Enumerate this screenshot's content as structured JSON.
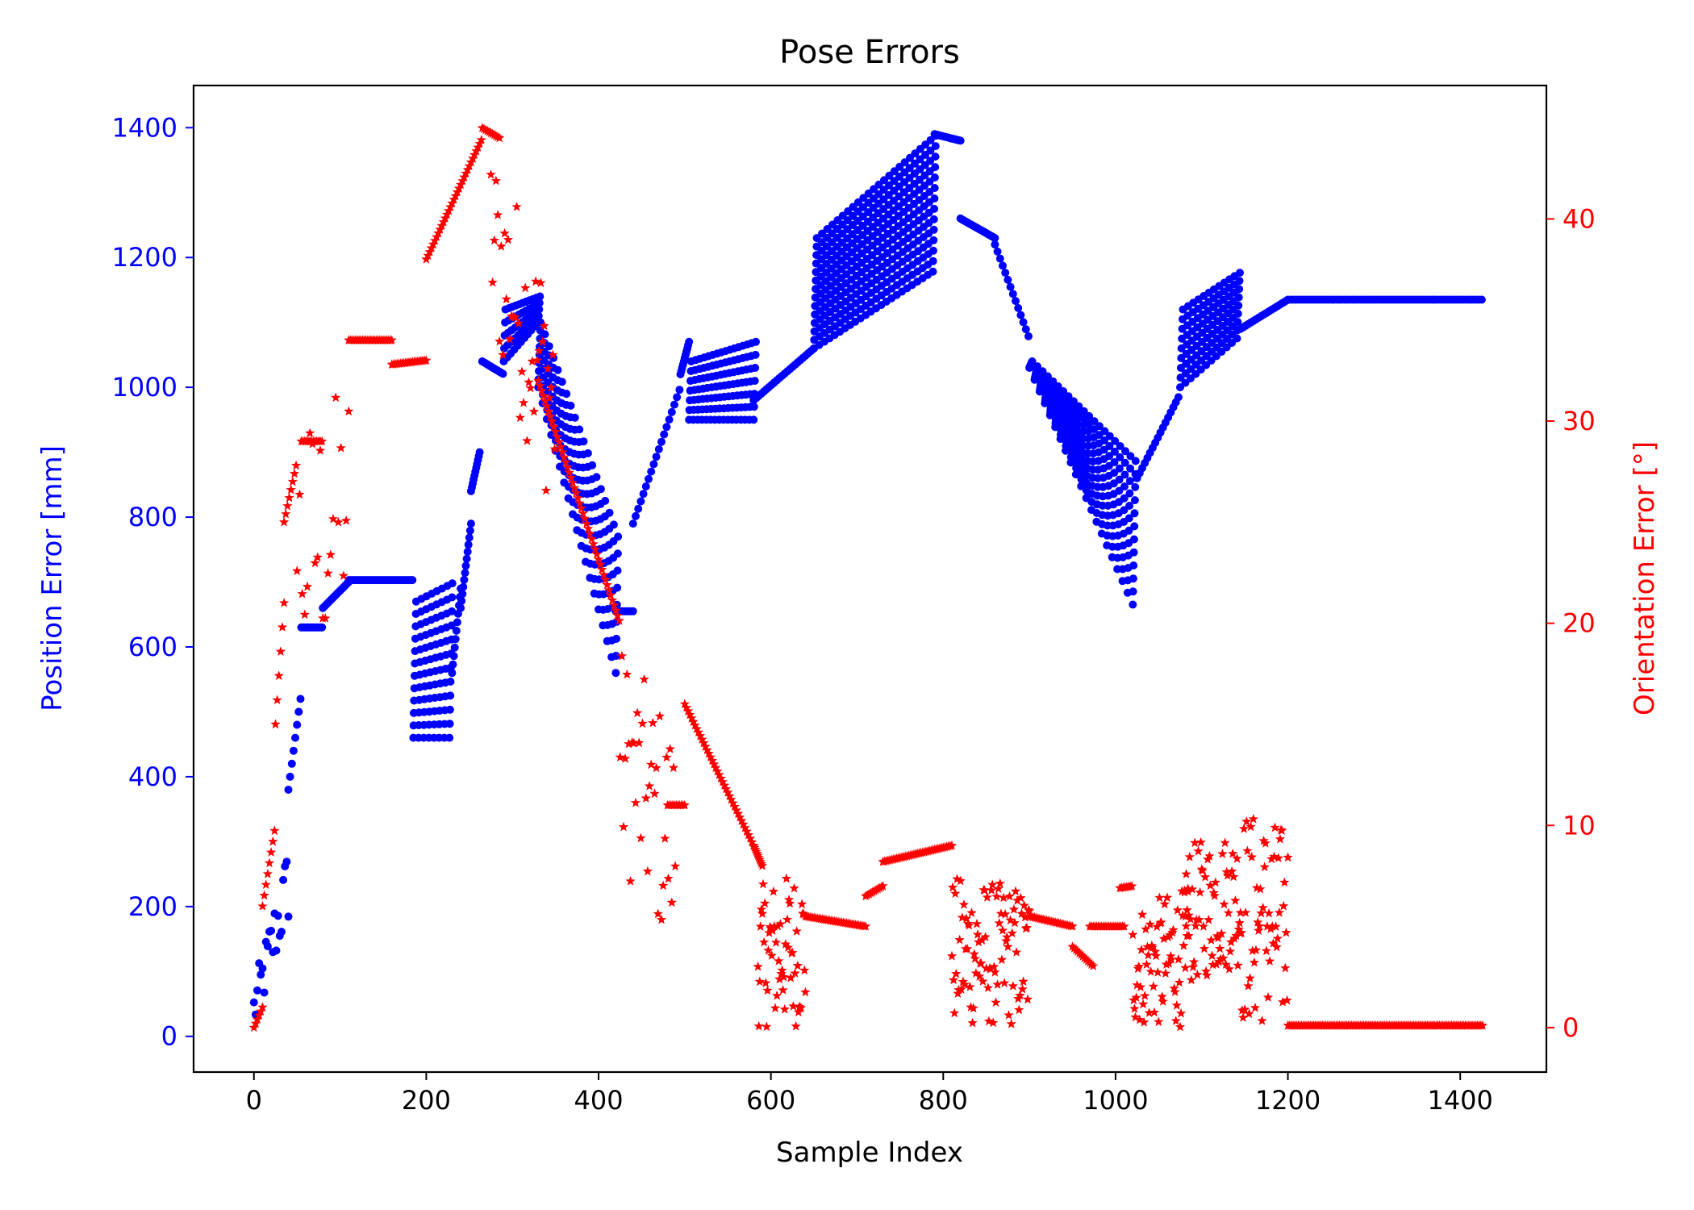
{
  "chart_data": {
    "type": "scatter",
    "title": "Pose Errors",
    "xlabel": "Sample Index",
    "ylabel_left": "Position Error [mm]",
    "ylabel_right": "Orientation Error [°]",
    "xlim": [
      -70,
      1500
    ],
    "ylim_left": [
      -55,
      1465
    ],
    "ylim_right": [
      -2.2,
      46.6
    ],
    "x_ticks": [
      0,
      200,
      400,
      600,
      800,
      1000,
      1200,
      1400
    ],
    "y_left_ticks": [
      0,
      200,
      400,
      600,
      800,
      1000,
      1200,
      1400
    ],
    "y_right_ticks": [
      0,
      10,
      20,
      30,
      40
    ],
    "grid": false,
    "left_color": "#0000ff",
    "right_color": "#ff0000",
    "series": [
      {
        "axis": "left",
        "marker": "circle",
        "color": "#0000ff",
        "segments": [
          {
            "type": "scatter",
            "x0": 0,
            "x1": 40,
            "step": 2,
            "lo": [
              0,
              170
            ],
            "hi": [
              80,
              300
            ]
          },
          {
            "type": "trend",
            "x0": 40,
            "x1": 55,
            "step": 2,
            "y": [
              380,
              530
            ]
          },
          {
            "type": "trend",
            "x0": 55,
            "x1": 80,
            "step": 2,
            "y": [
              630,
              630
            ]
          },
          {
            "type": "trend",
            "x0": 80,
            "x1": 110,
            "step": 2,
            "y": [
              660,
              700
            ]
          },
          {
            "type": "trend",
            "x0": 110,
            "x1": 185,
            "step": 2,
            "y": [
              703,
              703
            ]
          },
          {
            "type": "band",
            "x0": 185,
            "x1": 230,
            "step": 6,
            "lo": [
              460,
              460
            ],
            "hi": [
              670,
              700
            ],
            "density": 12
          },
          {
            "type": "trend",
            "x0": 230,
            "x1": 240,
            "step": 1,
            "y": [
              560,
              690
            ]
          },
          {
            "type": "trend",
            "x0": 240,
            "x1": 252,
            "step": 1,
            "y": [
              660,
              790
            ]
          },
          {
            "type": "trend",
            "x0": 252,
            "x1": 262,
            "step": 1,
            "y": [
              840,
              900
            ]
          },
          {
            "type": "trend",
            "x0": 265,
            "x1": 290,
            "step": 2,
            "y": [
              1040,
              1020
            ]
          },
          {
            "type": "band",
            "x0": 290,
            "x1": 330,
            "step": 4,
            "lo": [
              1040,
              1100
            ],
            "hi": [
              1120,
              1140
            ],
            "density": 5
          },
          {
            "type": "band",
            "x0": 330,
            "x1": 420,
            "step": 5,
            "lo": [
              1000,
              560
            ],
            "hi": [
              1100,
              770
            ],
            "density": 9
          },
          {
            "type": "trend",
            "x0": 420,
            "x1": 440,
            "step": 2,
            "y": [
              655,
              655
            ]
          },
          {
            "type": "trend",
            "x0": 440,
            "x1": 495,
            "step": 3,
            "y": [
              790,
              1000
            ]
          },
          {
            "type": "trend",
            "x0": 495,
            "x1": 505,
            "step": 1,
            "y": [
              1020,
              1070
            ]
          },
          {
            "type": "band",
            "x0": 505,
            "x1": 580,
            "step": 5,
            "lo": [
              950,
              950
            ],
            "hi": [
              1040,
              1070
            ],
            "density": 7
          },
          {
            "type": "trend",
            "x0": 580,
            "x1": 650,
            "step": 3,
            "y": [
              980,
              1060
            ]
          },
          {
            "type": "band",
            "x0": 650,
            "x1": 790,
            "step": 6,
            "lo": [
              1060,
              1180
            ],
            "hi": [
              1230,
              1390
            ],
            "density": 14
          },
          {
            "type": "trend",
            "x0": 790,
            "x1": 820,
            "step": 2,
            "y": [
              1390,
              1380
            ]
          },
          {
            "type": "trend",
            "x0": 820,
            "x1": 860,
            "step": 2,
            "y": [
              1260,
              1230
            ]
          },
          {
            "type": "trend",
            "x0": 860,
            "x1": 900,
            "step": 3,
            "y": [
              1220,
              1075
            ]
          },
          {
            "type": "band",
            "x0": 900,
            "x1": 1025,
            "step": 6,
            "lo": [
              1030,
              650
            ],
            "hi": [
              1040,
              880
            ],
            "density": 12
          },
          {
            "type": "trend",
            "x0": 1025,
            "x1": 1075,
            "step": 3,
            "y": [
              860,
              990
            ]
          },
          {
            "type": "band",
            "x0": 1075,
            "x1": 1145,
            "step": 6,
            "lo": [
              1000,
              1080
            ],
            "hi": [
              1120,
              1180
            ],
            "density": 9
          },
          {
            "type": "trend",
            "x0": 1145,
            "x1": 1200,
            "step": 3,
            "y": [
              1090,
              1135
            ]
          },
          {
            "type": "trend",
            "x0": 1200,
            "x1": 1427,
            "step": 3,
            "y": [
              1135,
              1135
            ]
          }
        ]
      },
      {
        "axis": "right",
        "marker": "star",
        "color": "#ff0000",
        "segments": [
          {
            "type": "trend",
            "x0": 0,
            "x1": 10,
            "step": 2,
            "y": [
              0,
              1
            ]
          },
          {
            "type": "trend",
            "x0": 10,
            "x1": 25,
            "step": 2,
            "y": [
              6,
              10
            ]
          },
          {
            "type": "trend",
            "x0": 25,
            "x1": 35,
            "step": 2,
            "y": [
              15,
              21
            ]
          },
          {
            "type": "trend",
            "x0": 35,
            "x1": 50,
            "step": 2,
            "y": [
              25,
              28
            ]
          },
          {
            "type": "scatter",
            "x0": 50,
            "x1": 110,
            "step": 3,
            "lo": [
              16,
              20
            ],
            "hi": [
              30,
              32
            ]
          },
          {
            "type": "trend",
            "x0": 55,
            "x1": 80,
            "step": 2,
            "y": [
              29,
              29
            ]
          },
          {
            "type": "trend",
            "x0": 110,
            "x1": 160,
            "step": 2,
            "y": [
              34,
              34
            ]
          },
          {
            "type": "trend",
            "x0": 160,
            "x1": 200,
            "step": 2,
            "y": [
              32.8,
              33
            ]
          },
          {
            "type": "trend",
            "x0": 200,
            "x1": 265,
            "step": 2,
            "y": [
              38,
              44
            ]
          },
          {
            "type": "trend",
            "x0": 265,
            "x1": 285,
            "step": 2,
            "y": [
              44.5,
              44
            ]
          },
          {
            "type": "scatter",
            "x0": 275,
            "x1": 350,
            "step": 2,
            "lo": [
              34,
              25
            ],
            "hi": [
              44,
              37
            ]
          },
          {
            "type": "trend",
            "x0": 330,
            "x1": 425,
            "step": 2,
            "y": [
              32,
              20
            ]
          },
          {
            "type": "scatter",
            "x0": 425,
            "x1": 490,
            "step": 2,
            "lo": [
              8,
              3
            ],
            "hi": [
              19,
              15
            ]
          },
          {
            "type": "trend",
            "x0": 480,
            "x1": 500,
            "step": 2,
            "y": [
              11,
              11
            ]
          },
          {
            "type": "trend",
            "x0": 500,
            "x1": 580,
            "step": 2,
            "y": [
              16,
              9
            ]
          },
          {
            "type": "trend",
            "x0": 580,
            "x1": 590,
            "step": 1,
            "y": [
              9,
              8
            ]
          },
          {
            "type": "scatter",
            "x0": 585,
            "x1": 640,
            "step": 1,
            "lo": [
              0,
              0
            ],
            "hi": [
              7,
              8
            ]
          },
          {
            "type": "trend",
            "x0": 640,
            "x1": 710,
            "step": 2,
            "y": [
              5.5,
              5
            ]
          },
          {
            "type": "trend",
            "x0": 710,
            "x1": 730,
            "step": 2,
            "y": [
              6.5,
              7
            ]
          },
          {
            "type": "trend",
            "x0": 730,
            "x1": 810,
            "step": 2,
            "y": [
              8.2,
              9
            ]
          },
          {
            "type": "scatter",
            "x0": 810,
            "x1": 900,
            "step": 1,
            "lo": [
              0,
              0
            ],
            "hi": [
              7.5,
              7
            ]
          },
          {
            "type": "trend",
            "x0": 900,
            "x1": 950,
            "step": 2,
            "y": [
              5.5,
              5
            ]
          },
          {
            "type": "trend",
            "x0": 950,
            "x1": 975,
            "step": 2,
            "y": [
              4,
              3
            ]
          },
          {
            "type": "trend",
            "x0": 970,
            "x1": 1010,
            "step": 2,
            "y": [
              5,
              5
            ]
          },
          {
            "type": "trend",
            "x0": 1005,
            "x1": 1020,
            "step": 2,
            "y": [
              6.9,
              7
            ]
          },
          {
            "type": "scatter",
            "x0": 1020,
            "x1": 1085,
            "step": 1,
            "lo": [
              0,
              0
            ],
            "hi": [
              6,
              7
            ]
          },
          {
            "type": "scatter",
            "x0": 1080,
            "x1": 1145,
            "step": 1,
            "lo": [
              2,
              3
            ],
            "hi": [
              9,
              10
            ]
          },
          {
            "type": "scatter",
            "x0": 1145,
            "x1": 1200,
            "step": 1,
            "lo": [
              0,
              0
            ],
            "hi": [
              11,
              10
            ]
          },
          {
            "type": "trend",
            "x0": 1200,
            "x1": 1427,
            "step": 2,
            "y": [
              0.1,
              0.1
            ]
          }
        ]
      }
    ]
  }
}
